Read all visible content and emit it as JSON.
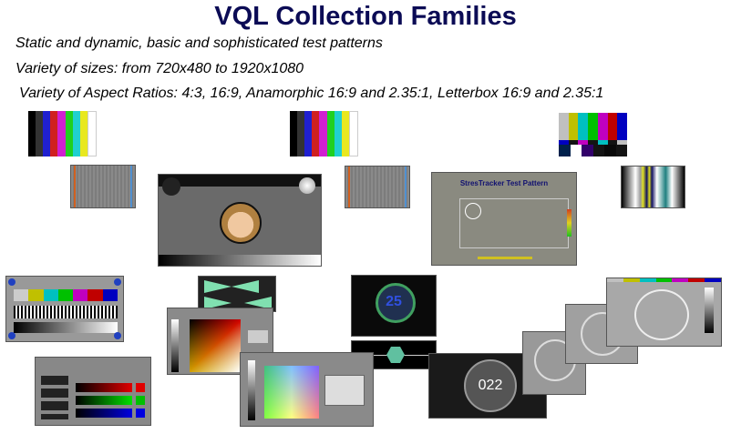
{
  "slide": {
    "title": "VQL Collection Families",
    "bullets": [
      "Static and dynamic, basic and sophisticated test patterns",
      "Variety of sizes: from 720x480 to 1920x1080",
      "Variety of Aspect Ratios: 4:3, 16:9, Anamorphic 16:9 and 2.35:1, Letterbox 16:9 and 2.35:1"
    ]
  },
  "thumbnails": {
    "colorbars": [
      "#000000",
      "#1a1ad0",
      "#d01a1a",
      "#d01ad0",
      "#1ad01a",
      "#1ad0d0",
      "#e8e81a",
      "#ffffff"
    ],
    "stress_tracker_title": "StresTracker Test Pattern",
    "counter_a": "25",
    "counter_b": "022"
  }
}
